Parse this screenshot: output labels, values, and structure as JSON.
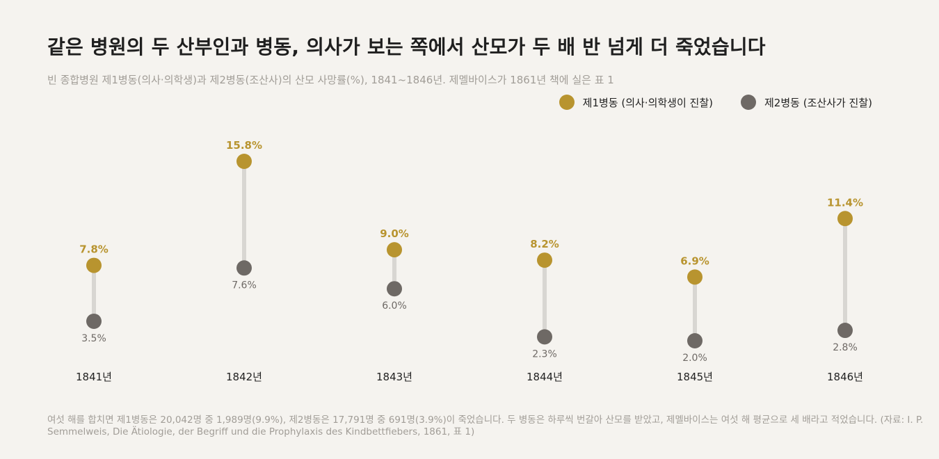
{
  "header": {
    "title": "같은 병원의 두 산부인과 병동, 의사가 보는 쪽에서 산모가 두 배 반 넘게 더 죽었습니다",
    "subtitle": "빈 종합병원 제1병동(의사·의학생)과 제2병동(조산사)의 산모 사망률(%), 1841~1846년. 제멜바이스가 1861년 책에 실은 표 1"
  },
  "legend": {
    "series1_label": "제1병동 (의사·의학생이 진찰)",
    "series2_label": "제2병동 (조산사가 진찰)",
    "placement": "top-right"
  },
  "colors": {
    "series1": "#b8942f",
    "series2": "#6e6965",
    "connector": "#d8d6d2",
    "background": "#f5f3ef"
  },
  "chart_data": {
    "type": "dumbbell",
    "categories": [
      "1841년",
      "1842년",
      "1843년",
      "1844년",
      "1845년",
      "1846년"
    ],
    "series": [
      {
        "name": "제1병동 (의사·의학생이 진찰)",
        "values": [
          7.8,
          15.8,
          9.0,
          8.2,
          6.9,
          11.4
        ],
        "labels": [
          "7.8%",
          "15.8%",
          "9.0%",
          "8.2%",
          "6.9%",
          "11.4%"
        ]
      },
      {
        "name": "제2병동 (조산사가 진찰)",
        "values": [
          3.5,
          7.6,
          6.0,
          2.3,
          2.0,
          2.8
        ],
        "labels": [
          "3.5%",
          "7.6%",
          "6.0%",
          "2.3%",
          "2.0%",
          "2.8%"
        ]
      }
    ],
    "unit": "%",
    "ylim": [
      0,
      16
    ],
    "grid": false
  },
  "footnote": "여섯 해를 합치면 제1병동은 20,042명 중 1,989명(9.9%), 제2병동은 17,791명 중 691명(3.9%)이 죽었습니다. 두 병동은 하루씩 번갈아 산모를 받았고, 제멜바이스는 여섯 해 평균으로 세 배라고 적었습니다. (자료: I. P. Semmelweis, Die Ätiologie, der Begriff und die Prophylaxis des Kindbettfiebers, 1861, 표 1)"
}
